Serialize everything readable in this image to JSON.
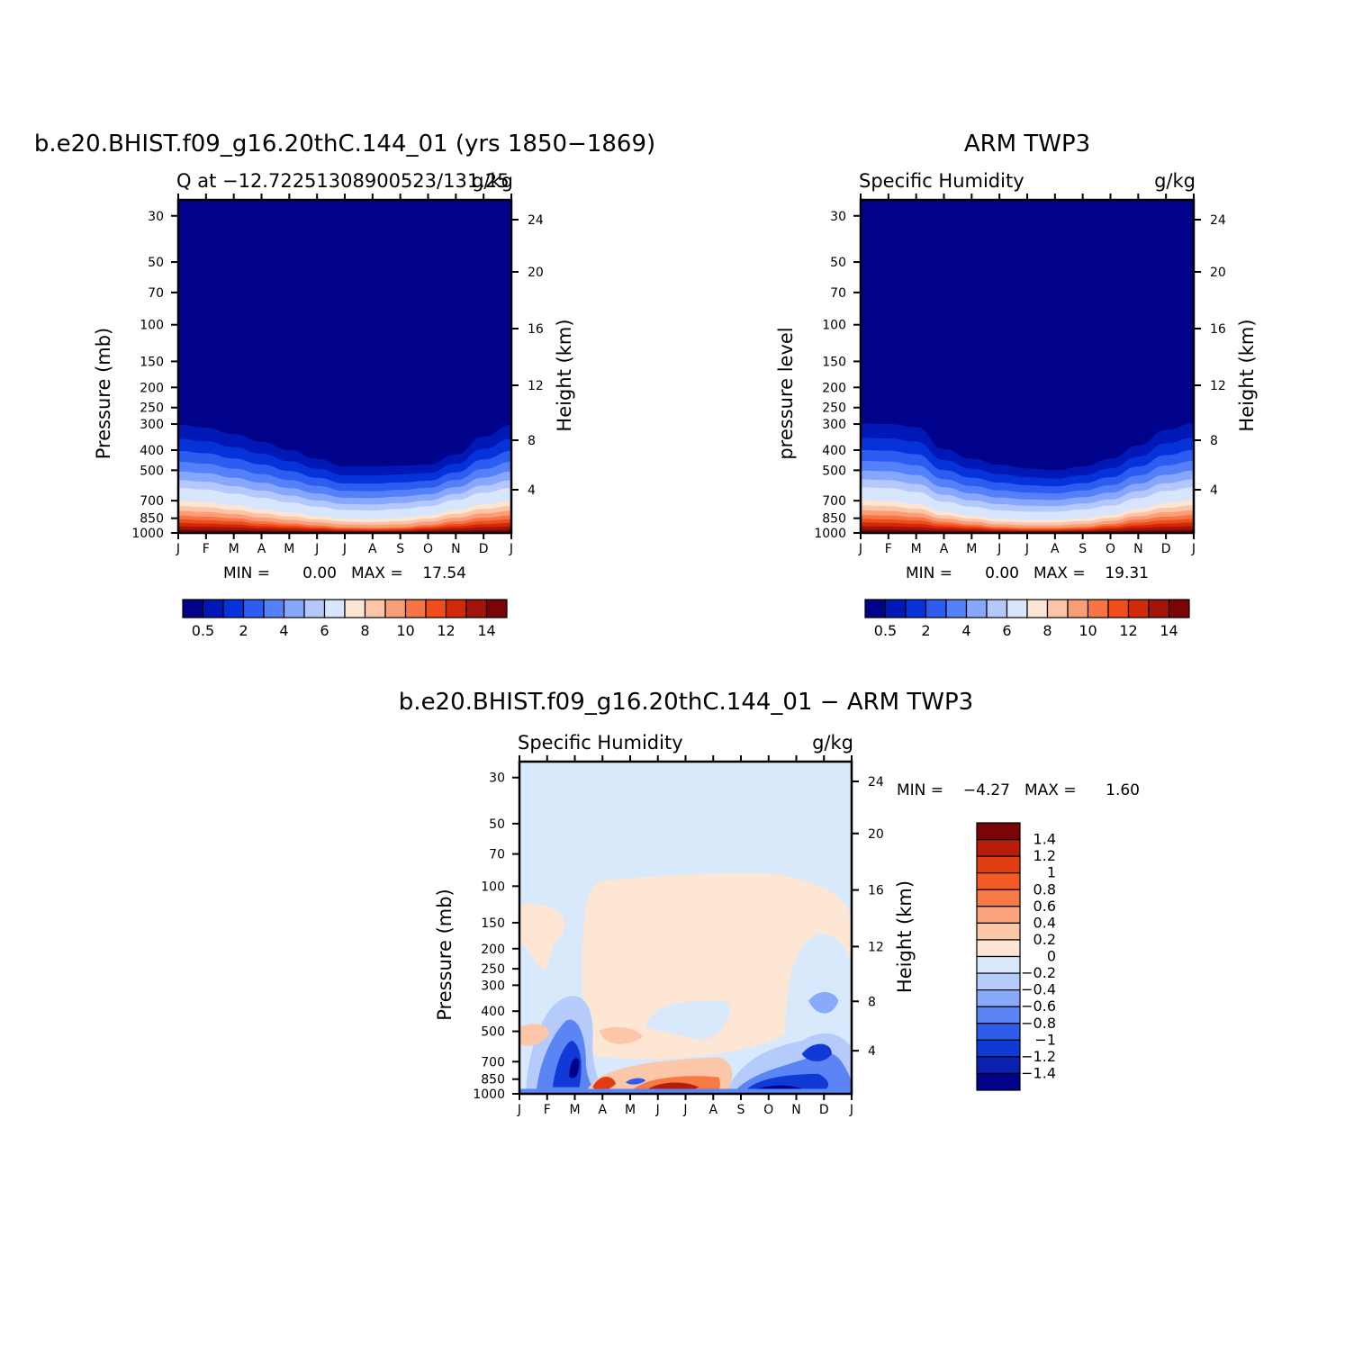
{
  "chart_data": [
    {
      "type": "heatmap",
      "id": "model",
      "title": "b.e20.BHIST.f09_g16.20thC.144_01 (yrs 1850−1869)",
      "subtitle_left": "Q at −12.72251308900523/131.25",
      "subtitle_right": "g/kg",
      "ylabel": "Pressure (mb)",
      "ylabel_right": "Height (km)",
      "x_ticks": [
        "J",
        "F",
        "M",
        "A",
        "M",
        "J",
        "J",
        "A",
        "S",
        "O",
        "N",
        "D",
        "J"
      ],
      "y_ticks": [
        "30",
        "50",
        "70",
        "100",
        "150",
        "200",
        "250",
        "300",
        "400",
        "500",
        "700",
        "850",
        "1000"
      ],
      "y_ticks_right": [
        "24",
        "20",
        "16",
        "12",
        "8",
        "4"
      ],
      "min_label": "MIN =",
      "min_value": "0.00",
      "max_label": "MAX =",
      "max_value": "17.54",
      "colorbar_labels": [
        "0.5",
        "2",
        "4",
        "6",
        "8",
        "10",
        "12",
        "14"
      ],
      "colorbar_colors": [
        "#00038a",
        "#0018b5",
        "#0633d9",
        "#2d5cf0",
        "#5480fa",
        "#86a7fb",
        "#b4c8fb",
        "#d7e6fc",
        "#fce5d3",
        "#fcc5a7",
        "#fa9e78",
        "#f77545",
        "#f24c1c",
        "#d02a0b",
        "#a3150a",
        "#7c0306"
      ],
      "profiles": {
        "p300": [
          302,
          312,
          335,
          365,
          400,
          440,
          480,
          480,
          475,
          470,
          420,
          345,
          302
        ],
        "p700": [
          660,
          670,
          700,
          730,
          765,
          800,
          825,
          830,
          815,
          790,
          740,
          690,
          660
        ],
        "p850": [
          825,
          835,
          850,
          880,
          900,
          920,
          940,
          945,
          940,
          915,
          880,
          845,
          825
        ]
      }
    },
    {
      "type": "heatmap",
      "id": "obs",
      "title": "ARM TWP3",
      "subtitle_left": "Specific Humidity",
      "subtitle_right": "g/kg",
      "ylabel": "pressure level",
      "ylabel_right": "Height (km)",
      "x_ticks": [
        "J",
        "F",
        "M",
        "A",
        "M",
        "J",
        "J",
        "A",
        "S",
        "O",
        "N",
        "D",
        "J"
      ],
      "y_ticks": [
        "30",
        "50",
        "70",
        "100",
        "150",
        "200",
        "250",
        "300",
        "400",
        "500",
        "700",
        "850",
        "1000"
      ],
      "y_ticks_right": [
        "24",
        "20",
        "16",
        "12",
        "8",
        "4"
      ],
      "min_label": "MIN =",
      "min_value": "0.00",
      "max_label": "MAX =",
      "max_value": "19.31",
      "colorbar_labels": [
        "0.5",
        "2",
        "4",
        "6",
        "8",
        "10",
        "12",
        "14"
      ],
      "colorbar_colors": [
        "#00038a",
        "#0018b5",
        "#0633d9",
        "#2d5cf0",
        "#5480fa",
        "#86a7fb",
        "#b4c8fb",
        "#d7e6fc",
        "#fce5d3",
        "#fcc5a7",
        "#fa9e78",
        "#f77545",
        "#f24c1c",
        "#d02a0b",
        "#a3150a",
        "#7c0306"
      ],
      "profiles": {
        "p300": [
          298,
          300,
          310,
          395,
          440,
          470,
          490,
          500,
          480,
          440,
          380,
          320,
          298
        ],
        "p700": [
          655,
          660,
          690,
          760,
          800,
          830,
          840,
          840,
          820,
          790,
          730,
          680,
          655
        ],
        "p850": [
          820,
          825,
          840,
          885,
          910,
          935,
          945,
          945,
          935,
          905,
          865,
          835,
          820
        ]
      }
    },
    {
      "type": "heatmap",
      "id": "diff",
      "title": "b.e20.BHIST.f09_g16.20thC.144_01 − ARM TWP3",
      "subtitle_left": "Specific Humidity",
      "subtitle_right": "g/kg",
      "ylabel": "Pressure (mb)",
      "ylabel_right": "Height (km)",
      "x_ticks": [
        "J",
        "F",
        "M",
        "A",
        "M",
        "J",
        "J",
        "A",
        "S",
        "O",
        "N",
        "D",
        "J"
      ],
      "y_ticks": [
        "30",
        "50",
        "70",
        "100",
        "150",
        "200",
        "250",
        "300",
        "400",
        "500",
        "700",
        "850",
        "1000"
      ],
      "y_ticks_right": [
        "24",
        "20",
        "16",
        "12",
        "8",
        "4"
      ],
      "min_label": "MIN =",
      "min_value": "−4.27",
      "max_label": "MAX =",
      "max_value": "1.60",
      "colorbar_labels": [
        "1.4",
        "1.2",
        "1",
        "0.8",
        "0.6",
        "0.4",
        "0.2",
        "0",
        "−0.2",
        "−0.4",
        "−0.6",
        "−0.8",
        "−1",
        "−1.2",
        "−1.4"
      ],
      "colorbar_colors": [
        "#7c0306",
        "#b81c0b",
        "#e23d12",
        "#f45a24",
        "#f77a45",
        "#fba37c",
        "#fcc6a8",
        "#fde6d4",
        "#d8e9fc",
        "#b4cbfb",
        "#89a9fa",
        "#5b84f5",
        "#2f5ceb",
        "#1139d6",
        "#0a20b1",
        "#00038a"
      ]
    }
  ]
}
